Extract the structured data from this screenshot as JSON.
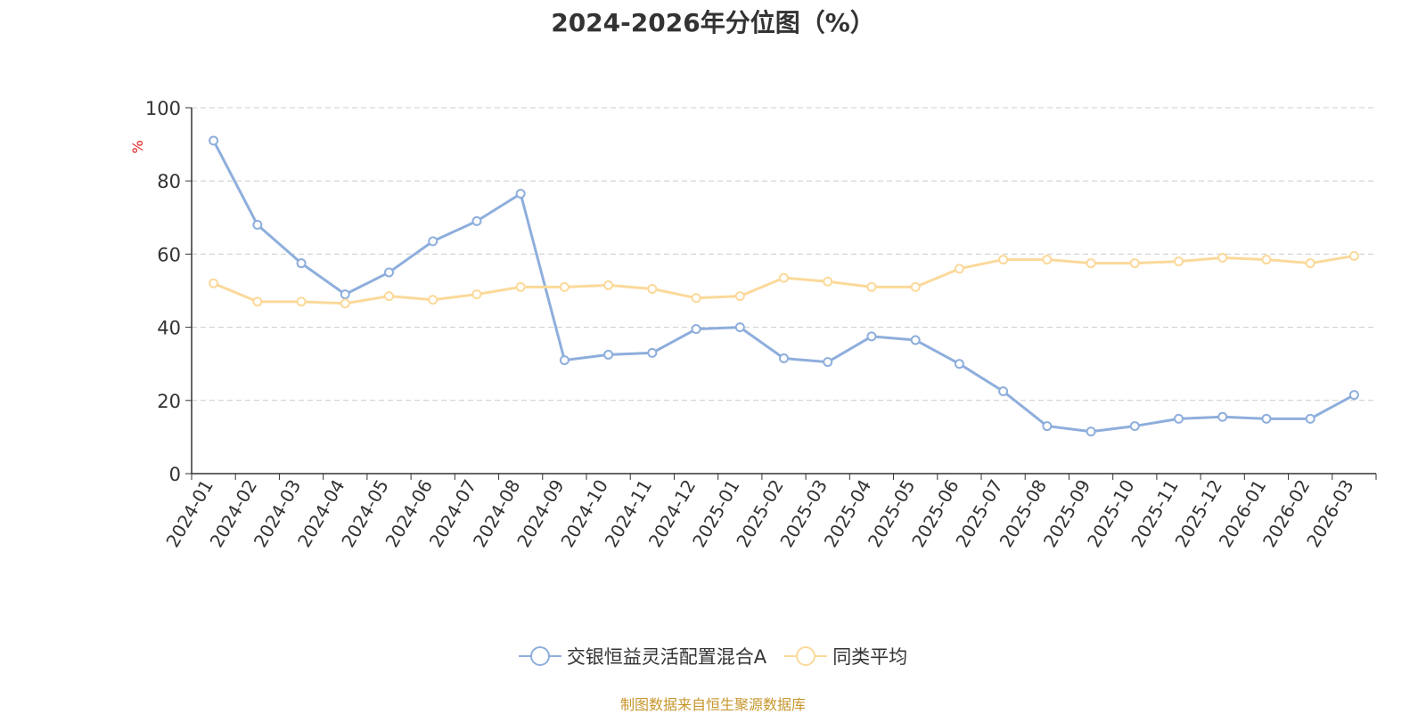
{
  "chart_data": {
    "type": "line",
    "title": "2024-2026年分位图（%）",
    "ylabel": "%",
    "xlabel": "",
    "ylim": [
      0,
      100
    ],
    "yticks": [
      0,
      20,
      40,
      60,
      80,
      100
    ],
    "grid": true,
    "legend_position": "bottom",
    "categories": [
      "2024-01",
      "2024-02",
      "2024-03",
      "2024-04",
      "2024-05",
      "2024-06",
      "2024-07",
      "2024-08",
      "2024-09",
      "2024-10",
      "2024-11",
      "2024-12",
      "2025-01",
      "2025-02",
      "2025-03",
      "2025-04",
      "2025-05",
      "2025-06",
      "2025-07",
      "2025-08",
      "2025-09",
      "2025-10",
      "2025-11",
      "2025-12",
      "2026-01",
      "2026-02",
      "2026-03"
    ],
    "series": [
      {
        "name": "交银恒益灵活配置混合A",
        "color": "#8eaedc",
        "values": [
          91,
          68,
          57.5,
          49,
          55,
          63.5,
          69,
          76.5,
          31,
          32.5,
          33,
          39.5,
          40,
          31.5,
          30.5,
          37.5,
          36.5,
          30,
          22.5,
          13,
          11.5,
          13,
          15,
          15.5,
          15,
          15,
          21.5
        ]
      },
      {
        "name": "同类平均",
        "color": "#fbd99a",
        "values": [
          52,
          47,
          47,
          46.5,
          48.5,
          47.5,
          49,
          51,
          51,
          51.5,
          50.5,
          48,
          48.5,
          53.5,
          52.5,
          51,
          51,
          56,
          58.5,
          58.5,
          57.5,
          57.5,
          58,
          59,
          58.5,
          57.5,
          59.5
        ]
      }
    ]
  },
  "source_note": "制图数据来自恒生聚源数据库",
  "colors": {
    "axis_label_color": "#333333",
    "ylabel_color": "#e02020",
    "grid_color": "#cccccc",
    "source_color": "#c7962d"
  }
}
